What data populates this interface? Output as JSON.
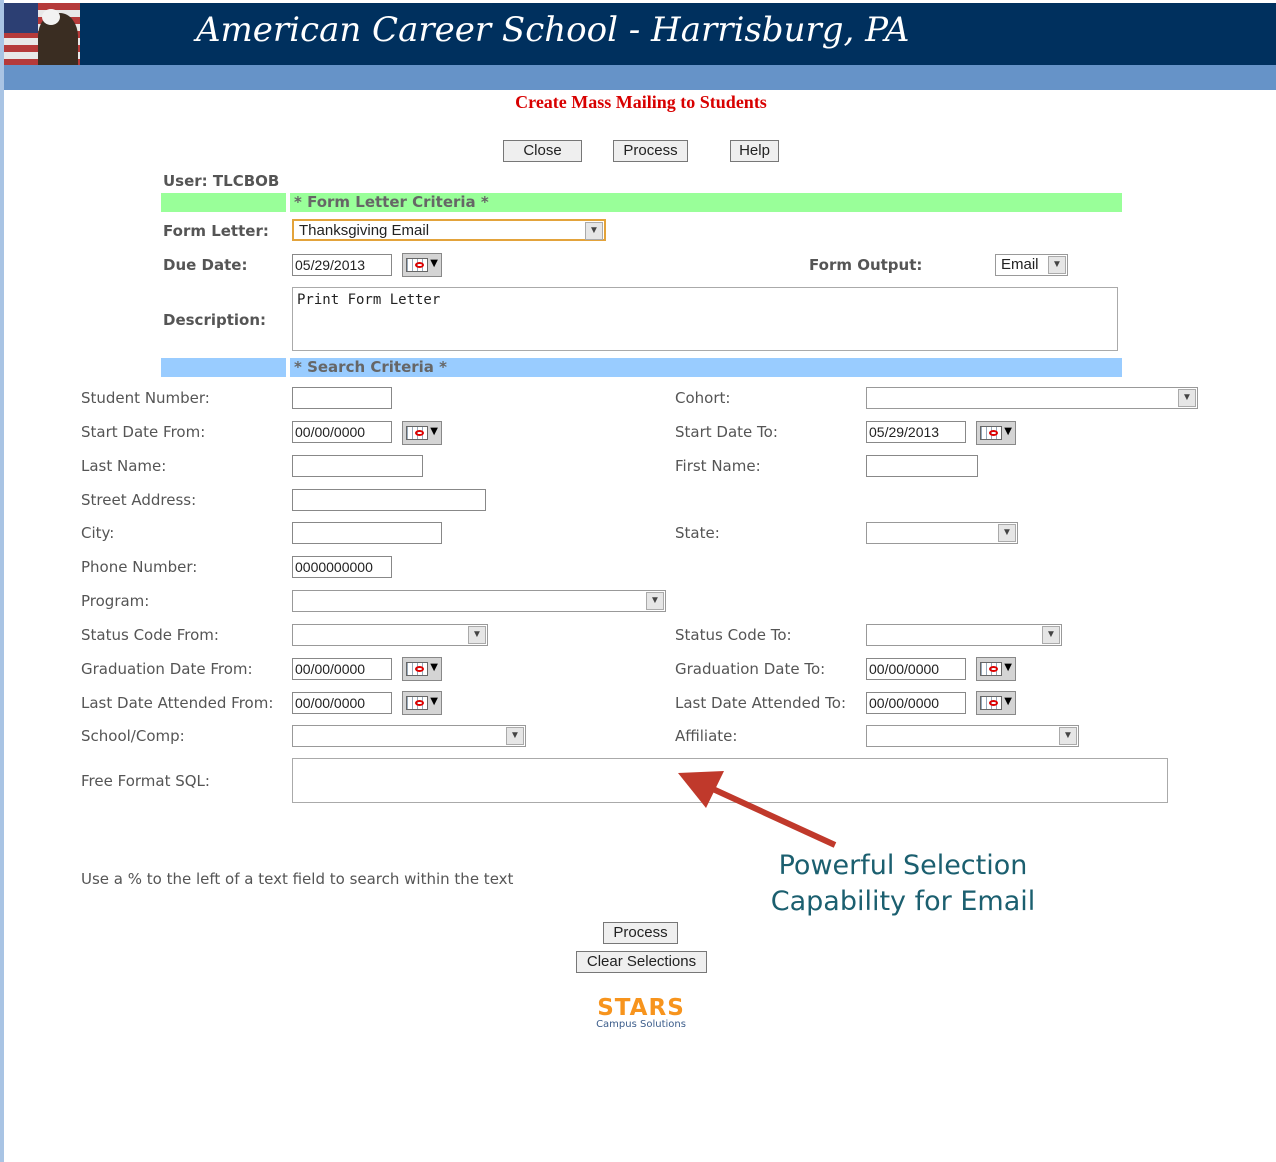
{
  "header": {
    "school": "American Career School - Harrisburg, PA"
  },
  "page_title": "Create Mass Mailing to Students",
  "toolbar": {
    "close": "Close",
    "process": "Process",
    "help": "Help"
  },
  "user": "User:  TLCBOB",
  "form_letter_section": {
    "header": "* Form Letter Criteria *",
    "form_letter_label": "Form Letter:",
    "form_letter_value": "Thanksgiving Email",
    "due_date_label": "Due Date:",
    "due_date_value": "05/29/2013",
    "form_output_label": "Form Output:",
    "form_output_value": "Email",
    "description_label": "Description:",
    "description_value": "Print Form Letter"
  },
  "search_section": {
    "header": "* Search Criteria *",
    "student_number": {
      "label": "Student Number:",
      "value": ""
    },
    "cohort": {
      "label": "Cohort:",
      "value": ""
    },
    "start_date_from": {
      "label": "Start Date From:",
      "value": "00/00/0000"
    },
    "start_date_to": {
      "label": "Start Date To:",
      "value": "05/29/2013"
    },
    "last_name": {
      "label": "Last Name:",
      "value": ""
    },
    "first_name": {
      "label": "First Name:",
      "value": ""
    },
    "street_address": {
      "label": "Street Address:",
      "value": ""
    },
    "city": {
      "label": "City:",
      "value": ""
    },
    "state": {
      "label": "State:",
      "value": ""
    },
    "phone_number": {
      "label": "Phone Number:",
      "value": "0000000000"
    },
    "program": {
      "label": "Program:",
      "value": ""
    },
    "status_code_from": {
      "label": "Status Code From:",
      "value": ""
    },
    "status_code_to": {
      "label": "Status Code To:",
      "value": ""
    },
    "graduation_date_from": {
      "label": "Graduation Date From:",
      "value": "00/00/0000"
    },
    "graduation_date_to": {
      "label": "Graduation Date To:",
      "value": "00/00/0000"
    },
    "last_date_attended_from": {
      "label": "Last Date Attended From:",
      "value": "00/00/0000"
    },
    "last_date_attended_to": {
      "label": "Last Date Attended To:",
      "value": "00/00/0000"
    },
    "school_comp": {
      "label": "School/Comp:",
      "value": ""
    },
    "affiliate": {
      "label": "Affiliate:",
      "value": ""
    },
    "free_format_sql": {
      "label": "Free Format SQL:",
      "value": ""
    }
  },
  "note": "Use a % to the left of a text field to search within the text",
  "callout": {
    "line1": "Powerful Selection",
    "line2": "Capability for Email",
    "color": "#1b5f6f",
    "arrow_color": "#c0392b"
  },
  "bottom": {
    "process": "Process",
    "clear": "Clear Selections"
  },
  "logo": {
    "name": "STARS",
    "sub": "Campus Solutions"
  }
}
